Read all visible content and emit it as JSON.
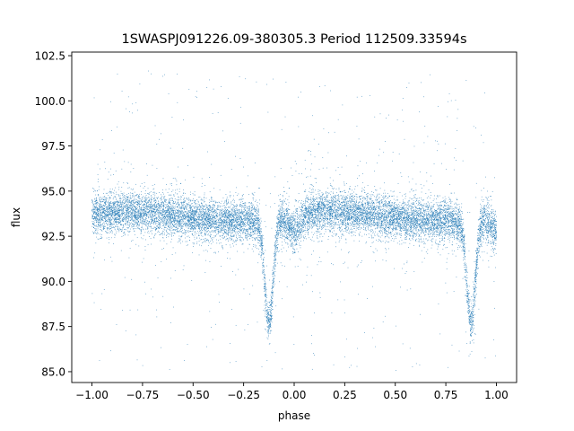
{
  "chart_data": {
    "type": "scatter",
    "title": "1SWASPJ091226.09-380305.3 Period 112509.33594s",
    "xlabel": "phase",
    "ylabel": "flux",
    "xlim": [
      -1.1,
      1.1
    ],
    "ylim": [
      84.4,
      102.7
    ],
    "xticks": [
      -1.0,
      -0.75,
      -0.5,
      -0.25,
      0.0,
      0.25,
      0.5,
      0.75,
      1.0
    ],
    "xtick_labels": [
      "−1.00",
      "−0.75",
      "−0.50",
      "−0.25",
      "0.00",
      "0.25",
      "0.50",
      "0.75",
      "1.00"
    ],
    "yticks": [
      85.0,
      87.5,
      90.0,
      92.5,
      95.0,
      97.5,
      100.0,
      102.5
    ],
    "ytick_labels": [
      "85.0",
      "87.5",
      "90.0",
      "92.5",
      "95.0",
      "97.5",
      "100.0",
      "102.5"
    ],
    "grid": false,
    "marker_color": "#1f77b4",
    "series": [
      {
        "description_of_curve": "phase-folded light curve, shown twice over phase -1 to 1",
        "baseline_flux": 93.6,
        "scatter_sigma": 0.55,
        "primary_eclipse": {
          "phase": -0.125,
          "min_flux": 87.8,
          "width": 0.03
        },
        "primary_eclipse_repeat": {
          "phase": 0.875,
          "min_flux": 87.8,
          "width": 0.03
        },
        "secondary_eclipse": {
          "phase": 0.0,
          "min_flux": 92.7,
          "width": 0.04
        },
        "secondary_eclipse_repeat": {
          "phase": 1.0,
          "min_flux": 92.7,
          "width": 0.04
        },
        "outlier_range": [
          85.0,
          101.8
        ],
        "n_points": 14000
      }
    ]
  }
}
